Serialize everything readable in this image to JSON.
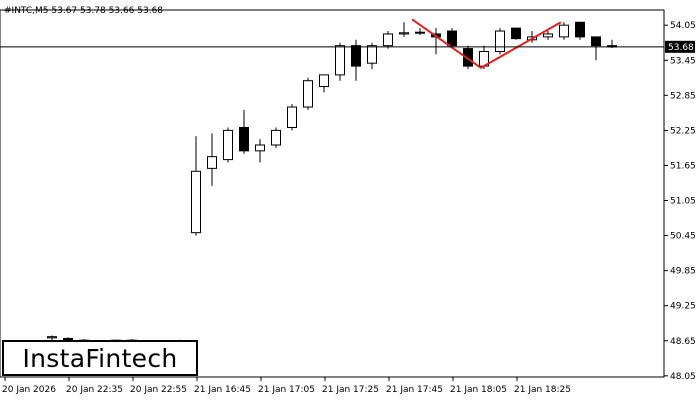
{
  "chart_data": {
    "type": "candlestick",
    "title": "#INTC,M5  53.67 53.78 53.66 53.68",
    "current_price": 53.68,
    "current_price_label": "53.68",
    "ylim": [
      48.03,
      54.31
    ],
    "y_ticks": [
      "54.05",
      "53.45",
      "52.85",
      "52.25",
      "51.65",
      "51.05",
      "50.45",
      "49.85",
      "49.25",
      "48.65",
      "48.05"
    ],
    "x_ticks": [
      "20 Jan 2026",
      "20 Jan 22:35",
      "20 Jan 22:55",
      "21 Jan 16:45",
      "21 Jan 17:05",
      "21 Jan 17:25",
      "21 Jan 17:45",
      "21 Jan 18:05",
      "21 Jan 18:25"
    ],
    "candles": [
      {
        "o": 48.7,
        "h": 48.74,
        "l": 48.62,
        "c": 48.72
      },
      {
        "o": 48.69,
        "h": 48.71,
        "l": 48.64,
        "c": 48.67
      },
      {
        "o": 48.66,
        "h": 48.68,
        "l": 48.62,
        "c": 48.64
      },
      {
        "o": 48.64,
        "h": 48.66,
        "l": 48.61,
        "c": 48.65
      },
      {
        "o": 48.65,
        "h": 48.67,
        "l": 48.62,
        "c": 48.66
      },
      {
        "o": 48.66,
        "h": 48.68,
        "l": 48.63,
        "c": 48.65
      },
      {
        "o": 48.65,
        "h": 48.66,
        "l": 48.62,
        "c": 48.64
      },
      {
        "o": 48.64,
        "h": 48.66,
        "l": 48.62,
        "c": 48.65
      },
      {
        "o": 48.65,
        "h": 48.67,
        "l": 48.63,
        "c": 48.64
      },
      {
        "o": 50.5,
        "h": 52.15,
        "l": 50.45,
        "c": 51.55
      },
      {
        "o": 51.6,
        "h": 52.2,
        "l": 51.3,
        "c": 51.8
      },
      {
        "o": 51.75,
        "h": 52.3,
        "l": 51.7,
        "c": 52.25
      },
      {
        "o": 52.3,
        "h": 52.6,
        "l": 51.85,
        "c": 51.9
      },
      {
        "o": 51.9,
        "h": 52.1,
        "l": 51.7,
        "c": 52.0
      },
      {
        "o": 52.0,
        "h": 52.3,
        "l": 51.95,
        "c": 52.25
      },
      {
        "o": 52.3,
        "h": 52.7,
        "l": 52.25,
        "c": 52.65
      },
      {
        "o": 52.65,
        "h": 53.15,
        "l": 52.6,
        "c": 53.1
      },
      {
        "o": 53.0,
        "h": 53.2,
        "l": 52.9,
        "c": 53.2
      },
      {
        "o": 53.2,
        "h": 53.75,
        "l": 53.1,
        "c": 53.7
      },
      {
        "o": 53.7,
        "h": 53.8,
        "l": 53.1,
        "c": 53.35
      },
      {
        "o": 53.4,
        "h": 53.75,
        "l": 53.3,
        "c": 53.7
      },
      {
        "o": 53.7,
        "h": 53.95,
        "l": 53.65,
        "c": 53.9
      },
      {
        "o": 53.9,
        "h": 54.1,
        "l": 53.85,
        "c": 53.92
      },
      {
        "o": 53.92,
        "h": 54.0,
        "l": 53.88,
        "c": 53.93
      },
      {
        "o": 53.9,
        "h": 54.0,
        "l": 53.55,
        "c": 53.85
      },
      {
        "o": 53.95,
        "h": 54.0,
        "l": 53.65,
        "c": 53.7
      },
      {
        "o": 53.65,
        "h": 53.7,
        "l": 53.3,
        "c": 53.35
      },
      {
        "o": 53.35,
        "h": 53.7,
        "l": 53.3,
        "c": 53.6
      },
      {
        "o": 53.6,
        "h": 54.0,
        "l": 53.55,
        "c": 53.95
      },
      {
        "o": 54.0,
        "h": 54.0,
        "l": 53.8,
        "c": 53.82
      },
      {
        "o": 53.8,
        "h": 53.95,
        "l": 53.75,
        "c": 53.85
      },
      {
        "o": 53.85,
        "h": 53.95,
        "l": 53.8,
        "c": 53.9
      },
      {
        "o": 53.85,
        "h": 54.1,
        "l": 53.8,
        "c": 54.05
      },
      {
        "o": 54.1,
        "h": 54.1,
        "l": 53.8,
        "c": 53.85
      },
      {
        "o": 53.85,
        "h": 53.85,
        "l": 53.45,
        "c": 53.7
      },
      {
        "o": 53.7,
        "h": 53.8,
        "l": 53.66,
        "c": 53.68
      }
    ],
    "pattern": {
      "name": "double top",
      "color": "#dd2222",
      "points": [
        {
          "i": 22.5,
          "y": 54.15
        },
        {
          "i": 26.8,
          "y": 53.32
        },
        {
          "i": 31.8,
          "y": 54.1
        }
      ]
    },
    "colors": {
      "bull": "#ffffff",
      "bear": "#000000",
      "outline": "#000000",
      "pattern": "#dd2222",
      "background": "#ffffff"
    }
  },
  "logo": {
    "text": "InstaFintech"
  }
}
